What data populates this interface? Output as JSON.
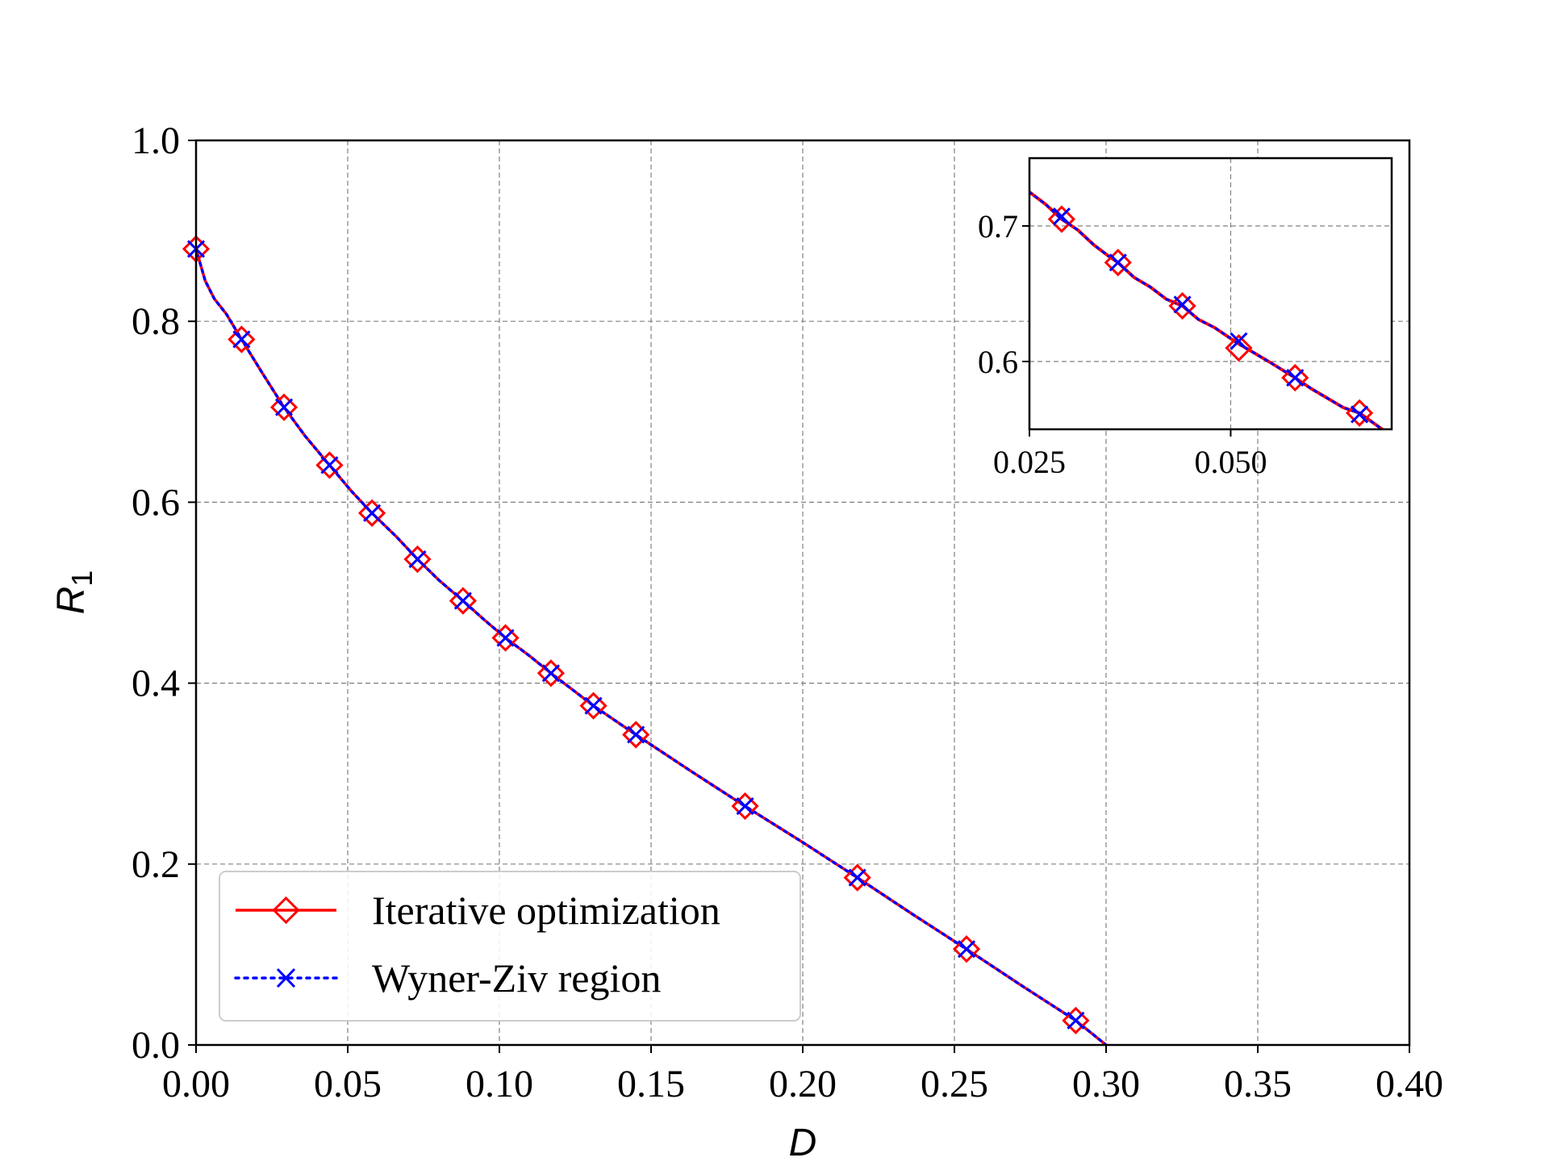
{
  "chart_data": {
    "type": "line",
    "title": "",
    "xlabel": "D",
    "ylabel": "R",
    "ylabel_subscript": "1",
    "xlim": [
      0.0,
      0.4
    ],
    "ylim": [
      0.0,
      1.0
    ],
    "grid": true,
    "xticks": [
      0.0,
      0.05,
      0.1,
      0.15,
      0.2,
      0.25,
      0.3,
      0.35,
      0.4
    ],
    "xtick_labels": [
      "0.00",
      "0.05",
      "0.10",
      "0.15",
      "0.20",
      "0.25",
      "0.30",
      "0.35",
      "0.40"
    ],
    "yticks": [
      0.0,
      0.2,
      0.4,
      0.6,
      0.8,
      1.0
    ],
    "ytick_labels": [
      "0.0",
      "0.2",
      "0.4",
      "0.6",
      "0.8",
      "1.0"
    ],
    "legend_position": "lower-left",
    "series": [
      {
        "name": "Iterative optimization",
        "color": "#ff0000",
        "line_style": "solid",
        "marker": "diamond",
        "curve_x": [
          0.0,
          0.003,
          0.006,
          0.01,
          0.015,
          0.022,
          0.029,
          0.036,
          0.044,
          0.051,
          0.058,
          0.066,
          0.073,
          0.08,
          0.088,
          0.095,
          0.102,
          0.11,
          0.117,
          0.124,
          0.131,
          0.138,
          0.145,
          0.163,
          0.181,
          0.2,
          0.218,
          0.236,
          0.254,
          0.272,
          0.29,
          0.3
        ],
        "curve_y": [
          0.88,
          0.845,
          0.825,
          0.808,
          0.78,
          0.742,
          0.705,
          0.673,
          0.641,
          0.613,
          0.588,
          0.562,
          0.537,
          0.514,
          0.491,
          0.47,
          0.45,
          0.43,
          0.411,
          0.393,
          0.375,
          0.359,
          0.343,
          0.303,
          0.264,
          0.224,
          0.185,
          0.145,
          0.106,
          0.066,
          0.027,
          0.0
        ],
        "marker_x": [
          0.0,
          0.015,
          0.029,
          0.044,
          0.058,
          0.073,
          0.088,
          0.102,
          0.117,
          0.131,
          0.145,
          0.181,
          0.218,
          0.254,
          0.29
        ],
        "marker_y": [
          0.88,
          0.78,
          0.705,
          0.641,
          0.588,
          0.537,
          0.491,
          0.45,
          0.411,
          0.375,
          0.343,
          0.264,
          0.185,
          0.106,
          0.027
        ]
      },
      {
        "name": "Wyner-Ziv region",
        "color": "#0000ff",
        "line_style": "dotted",
        "marker": "x",
        "curve_x": [
          0.0,
          0.003,
          0.006,
          0.01,
          0.015,
          0.022,
          0.029,
          0.036,
          0.044,
          0.051,
          0.058,
          0.066,
          0.073,
          0.08,
          0.088,
          0.095,
          0.102,
          0.11,
          0.117,
          0.124,
          0.131,
          0.138,
          0.145,
          0.163,
          0.181,
          0.2,
          0.218,
          0.236,
          0.254,
          0.272,
          0.29,
          0.3
        ],
        "curve_y": [
          0.88,
          0.845,
          0.825,
          0.808,
          0.78,
          0.742,
          0.705,
          0.673,
          0.641,
          0.613,
          0.588,
          0.562,
          0.537,
          0.514,
          0.491,
          0.47,
          0.45,
          0.43,
          0.411,
          0.393,
          0.375,
          0.359,
          0.343,
          0.303,
          0.264,
          0.224,
          0.185,
          0.145,
          0.106,
          0.066,
          0.027,
          0.0
        ],
        "marker_x": [
          0.0,
          0.015,
          0.029,
          0.044,
          0.058,
          0.073,
          0.088,
          0.102,
          0.117,
          0.131,
          0.145,
          0.181,
          0.218,
          0.254,
          0.29
        ],
        "marker_y": [
          0.88,
          0.78,
          0.705,
          0.641,
          0.588,
          0.537,
          0.491,
          0.45,
          0.411,
          0.375,
          0.343,
          0.264,
          0.185,
          0.106,
          0.027
        ]
      }
    ],
    "inset": {
      "xlim": [
        0.025,
        0.07
      ],
      "ylim": [
        0.55,
        0.75
      ],
      "xticks": [
        0.025,
        0.05
      ],
      "xtick_labels": [
        "0.025",
        "0.050"
      ],
      "yticks": [
        0.6,
        0.7
      ],
      "ytick_labels": [
        "0.6",
        "0.7"
      ],
      "grid": true,
      "placement": "top-right",
      "curve_x": [
        0.025,
        0.027,
        0.029,
        0.031,
        0.033,
        0.035,
        0.036,
        0.038,
        0.04,
        0.042,
        0.044,
        0.046,
        0.048,
        0.051,
        0.053,
        0.055,
        0.058,
        0.06,
        0.062,
        0.064,
        0.066,
        0.07
      ],
      "curve_y": [
        0.725,
        0.716,
        0.705,
        0.697,
        0.686,
        0.677,
        0.673,
        0.662,
        0.655,
        0.646,
        0.641,
        0.631,
        0.625,
        0.613,
        0.606,
        0.599,
        0.588,
        0.58,
        0.573,
        0.566,
        0.562,
        0.545
      ],
      "iterative_marker_x": [
        0.029,
        0.036,
        0.044,
        0.051,
        0.058,
        0.066
      ],
      "iterative_marker_y": [
        0.705,
        0.673,
        0.641,
        0.61,
        0.588,
        0.562
      ],
      "wz_marker_x": [
        0.029,
        0.036,
        0.044,
        0.051,
        0.058,
        0.066
      ],
      "wz_marker_y": [
        0.707,
        0.673,
        0.642,
        0.615,
        0.588,
        0.561
      ]
    }
  }
}
